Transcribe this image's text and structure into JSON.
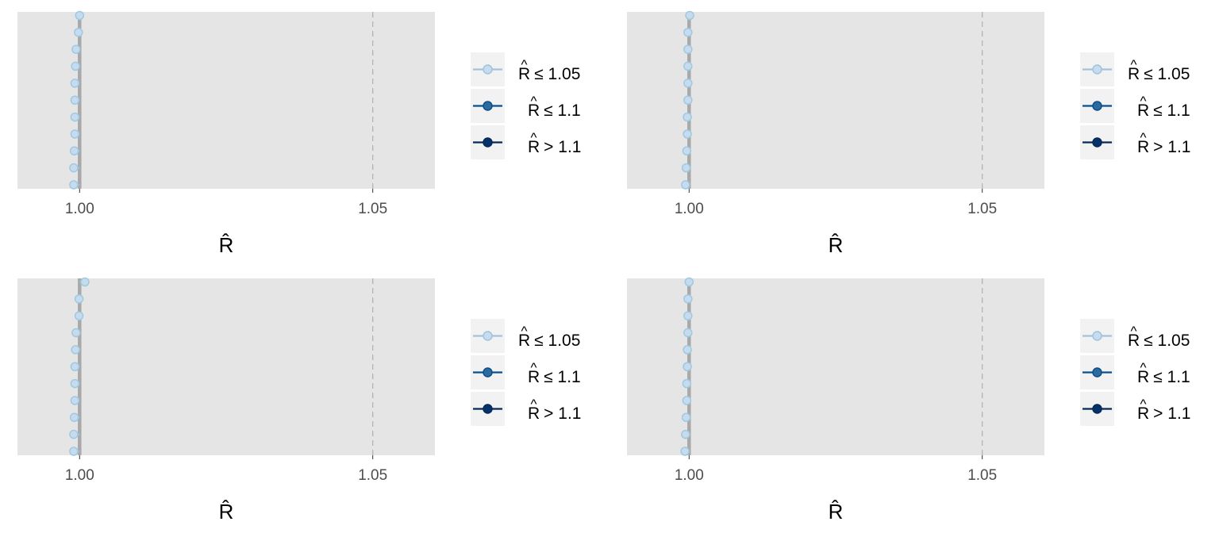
{
  "colors": {
    "panel_background": "#e5e5e5",
    "line_color": "#a9a9a9",
    "reference_line": "#b3b3b3",
    "point_fill": "#c6dbef",
    "point_stroke": "#9ecae1",
    "legend_key_background": "#f2f2f2",
    "level_colors": [
      "#c6dbef",
      "#2c6aa0",
      "#08306b"
    ],
    "level_line_colors": [
      "#a3c2dd",
      "#0b4f8c",
      "#052a55"
    ]
  },
  "legend": {
    "items": [
      {
        "hat": "^",
        "symbol": "R",
        "rest": "≤ 1.05"
      },
      {
        "hat": "^",
        "symbol": "R",
        "rest": "≤ 1.1"
      },
      {
        "hat": "^",
        "symbol": "R",
        "rest": "> 1.1"
      }
    ]
  },
  "chart_data": [
    {
      "type": "scatter",
      "panel": "top-left",
      "xlabel": "R̂",
      "xlim": [
        0.9894,
        1.0606
      ],
      "x_ticks": [
        1.0,
        1.05
      ],
      "x_tick_labels": [
        "1.00",
        "1.05"
      ],
      "reference_lines": [
        1.0,
        1.05
      ],
      "grid": false,
      "legend_position": "right",
      "values": [
        1.0,
        0.9998,
        0.9994,
        0.9993,
        0.9992,
        0.9992,
        0.9992,
        0.9992,
        0.9991,
        0.999,
        0.999
      ]
    },
    {
      "type": "scatter",
      "panel": "top-right",
      "xlabel": "R̂",
      "xlim": [
        0.9894,
        1.0606
      ],
      "x_ticks": [
        1.0,
        1.05
      ],
      "x_tick_labels": [
        "1.00",
        "1.05"
      ],
      "reference_lines": [
        1.0,
        1.05
      ],
      "grid": false,
      "legend_position": "right",
      "values": [
        1.0001,
        0.9998,
        0.9998,
        0.9998,
        0.9998,
        0.9998,
        0.9997,
        0.9997,
        0.9996,
        0.9995,
        0.9994
      ]
    },
    {
      "type": "scatter",
      "panel": "bottom-left",
      "xlabel": "R̂",
      "xlim": [
        0.9894,
        1.0606
      ],
      "x_ticks": [
        1.0,
        1.05
      ],
      "x_tick_labels": [
        "1.00",
        "1.05"
      ],
      "reference_lines": [
        1.0,
        1.05
      ],
      "grid": false,
      "legend_position": "right",
      "values": [
        1.0009,
        0.9999,
        0.9999,
        0.9994,
        0.9993,
        0.9992,
        0.9992,
        0.9992,
        0.9991,
        0.999,
        0.999
      ]
    },
    {
      "type": "scatter",
      "panel": "bottom-right",
      "xlabel": "R̂",
      "xlim": [
        0.9894,
        1.0606
      ],
      "x_ticks": [
        1.0,
        1.05
      ],
      "x_tick_labels": [
        "1.00",
        "1.05"
      ],
      "reference_lines": [
        1.0,
        1.05
      ],
      "grid": false,
      "legend_position": "right",
      "values": [
        1.0,
        0.9998,
        0.9998,
        0.9998,
        0.9997,
        0.9997,
        0.9996,
        0.9996,
        0.9995,
        0.9994,
        0.9993
      ]
    }
  ]
}
